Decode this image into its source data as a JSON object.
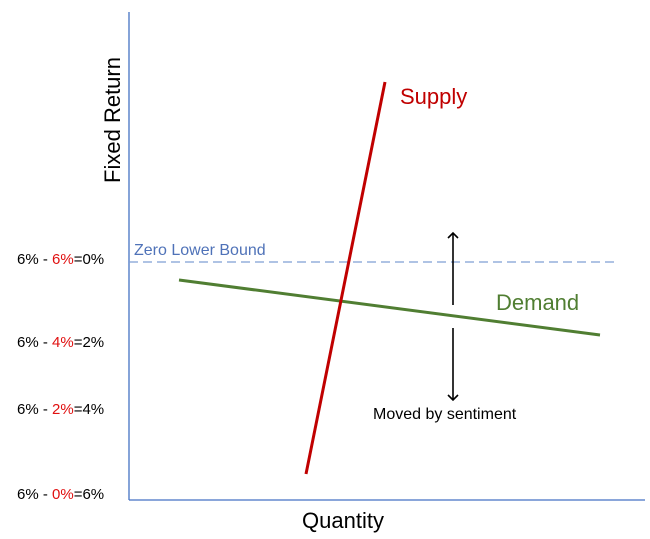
{
  "axes": {
    "y_label": "Fixed Return",
    "x_label": "Quantity"
  },
  "y_ticks": [
    {
      "prefix": "6% - ",
      "highlight": "6%",
      "suffix": "=0%"
    },
    {
      "prefix": "6% - ",
      "highlight": "4%",
      "suffix": "=2%"
    },
    {
      "prefix": "6% - ",
      "highlight": "2%",
      "suffix": "=4%"
    },
    {
      "prefix": "6% - ",
      "highlight": "0%",
      "suffix": "=6%"
    }
  ],
  "zero_lower_bound": {
    "label": "Zero Lower Bound",
    "color": "#4f72b8"
  },
  "supply": {
    "label": "Supply",
    "color": "#c00000"
  },
  "demand": {
    "label": "Demand",
    "color": "#507e32"
  },
  "annotation": {
    "label": "Moved by sentiment"
  },
  "highlight_color": "#e01010"
}
